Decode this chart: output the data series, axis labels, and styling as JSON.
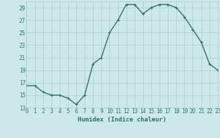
{
  "x": [
    0,
    1,
    2,
    3,
    4,
    5,
    6,
    7,
    8,
    9,
    10,
    11,
    12,
    13,
    14,
    15,
    16,
    17,
    18,
    19,
    20,
    21,
    22,
    23
  ],
  "y": [
    16.5,
    16.5,
    15.5,
    15.0,
    15.0,
    14.5,
    13.5,
    15.0,
    20.0,
    21.0,
    25.0,
    27.0,
    29.5,
    29.5,
    28.0,
    29.0,
    29.5,
    29.5,
    29.0,
    27.5,
    25.5,
    23.5,
    20.0,
    19.0
  ],
  "line_color": "#2e6e6e",
  "marker": "+",
  "marker_size": 3,
  "marker_linewidth": 0.8,
  "bg_color": "#cce8e8",
  "grid_color": "#aacccc",
  "xlabel": "Humidex (Indice chaleur)",
  "xlim": [
    0,
    23
  ],
  "ylim": [
    13,
    30
  ],
  "yticks": [
    13,
    15,
    17,
    19,
    21,
    23,
    25,
    27,
    29
  ],
  "xticks": [
    0,
    1,
    2,
    3,
    4,
    5,
    6,
    7,
    8,
    9,
    10,
    11,
    12,
    13,
    14,
    15,
    16,
    17,
    18,
    19,
    20,
    21,
    22,
    23
  ],
  "tick_fontsize": 5.5,
  "xlabel_fontsize": 6.5,
  "line_width": 1.0
}
